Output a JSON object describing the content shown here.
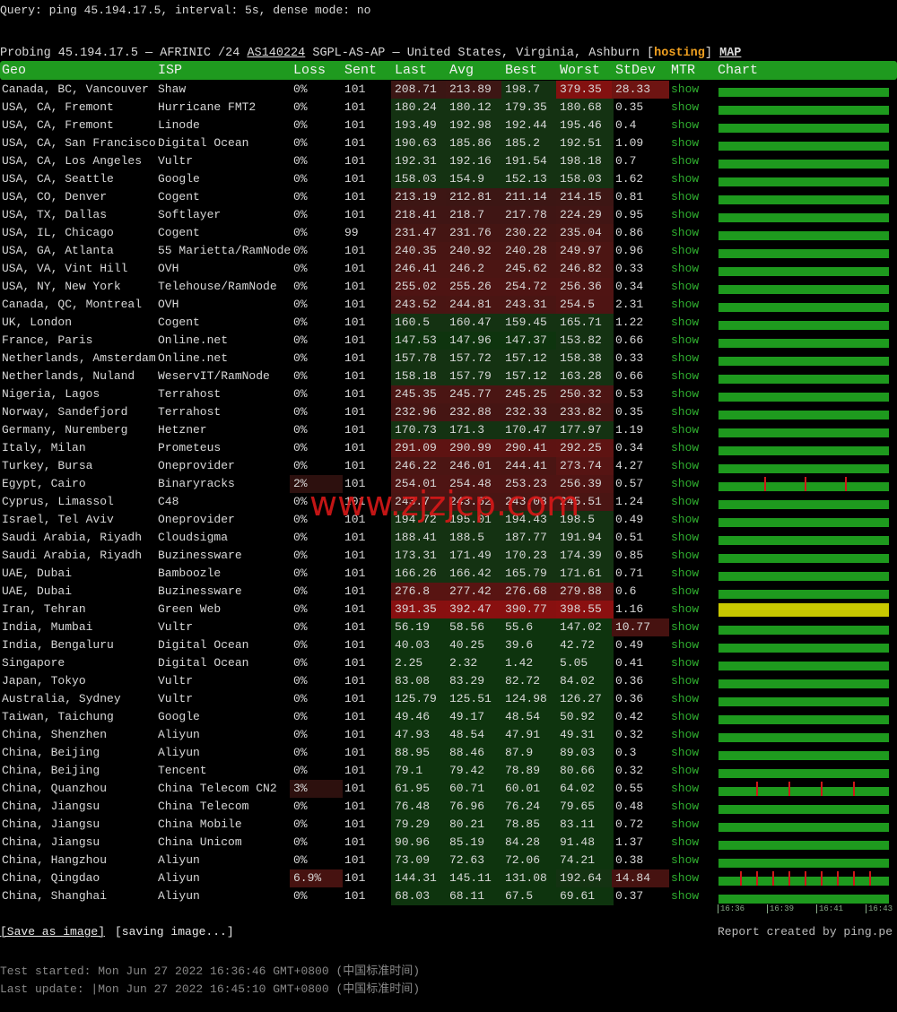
{
  "query": "Query: ping 45.194.17.5, interval: 5s, dense mode: no",
  "probing": {
    "prefix": "Probing 45.194.17.5 — AFRINIC /24",
    "asn": "AS140224",
    "location": "SGPL-AS-AP — United States, Virginia, Ashburn",
    "open": "[",
    "tag": "hosting",
    "close": "]",
    "map": "MAP"
  },
  "table": {
    "headers": [
      "Geo",
      "ISP",
      "Loss",
      "Sent",
      "Last",
      "Avg",
      "Best",
      "Worst",
      "StDev",
      "MTR",
      "Chart"
    ],
    "rows": [
      [
        "Canada, BC, Vancouver",
        "Shaw",
        "0%",
        101,
        208.71,
        213.89,
        198.7,
        379.35,
        28.33,
        "show"
      ],
      [
        "USA, CA, Fremont",
        "Hurricane FMT2",
        "0%",
        101,
        180.24,
        180.12,
        179.35,
        180.68,
        0.35,
        "show"
      ],
      [
        "USA, CA, Fremont",
        "Linode",
        "0%",
        101,
        193.49,
        192.98,
        192.44,
        195.46,
        0.4,
        "show"
      ],
      [
        "USA, CA, San Francisco",
        "Digital Ocean",
        "0%",
        101,
        190.63,
        185.86,
        185.2,
        192.51,
        1.09,
        "show"
      ],
      [
        "USA, CA, Los Angeles",
        "Vultr",
        "0%",
        101,
        192.31,
        192.16,
        191.54,
        198.18,
        0.7,
        "show"
      ],
      [
        "USA, CA, Seattle",
        "Google",
        "0%",
        101,
        158.03,
        154.9,
        152.13,
        158.03,
        1.62,
        "show"
      ],
      [
        "USA, CO, Denver",
        "Cogent",
        "0%",
        101,
        213.19,
        212.81,
        211.14,
        214.15,
        0.81,
        "show"
      ],
      [
        "USA, TX, Dallas",
        "Softlayer",
        "0%",
        101,
        218.41,
        218.7,
        217.78,
        224.29,
        0.95,
        "show"
      ],
      [
        "USA, IL, Chicago",
        "Cogent",
        "0%",
        99,
        231.47,
        231.76,
        230.22,
        235.04,
        0.86,
        "show"
      ],
      [
        "USA, GA, Atlanta",
        "55 Marietta/RamNode",
        "0%",
        101,
        240.35,
        240.92,
        240.28,
        249.97,
        0.96,
        "show"
      ],
      [
        "USA, VA, Vint Hill",
        "OVH",
        "0%",
        101,
        246.41,
        246.2,
        245.62,
        246.82,
        0.33,
        "show"
      ],
      [
        "USA, NY, New York",
        "Telehouse/RamNode",
        "0%",
        101,
        255.02,
        255.26,
        254.72,
        256.36,
        0.34,
        "show"
      ],
      [
        "Canada, QC, Montreal",
        "OVH",
        "0%",
        101,
        243.52,
        244.81,
        243.31,
        254.5,
        2.31,
        "show"
      ],
      [
        "UK, London",
        "Cogent",
        "0%",
        101,
        160.5,
        160.47,
        159.45,
        165.71,
        1.22,
        "show"
      ],
      [
        "France, Paris",
        "Online.net",
        "0%",
        101,
        147.53,
        147.96,
        147.37,
        153.82,
        0.66,
        "show"
      ],
      [
        "Netherlands, Amsterdam",
        "Online.net",
        "0%",
        101,
        157.78,
        157.72,
        157.12,
        158.38,
        0.33,
        "show"
      ],
      [
        "Netherlands, Nuland",
        "WeservIT/RamNode",
        "0%",
        101,
        158.18,
        157.79,
        157.12,
        163.28,
        0.66,
        "show"
      ],
      [
        "Nigeria, Lagos",
        "Terrahost",
        "0%",
        101,
        245.35,
        245.77,
        245.25,
        250.32,
        0.53,
        "show"
      ],
      [
        "Norway, Sandefjord",
        "Terrahost",
        "0%",
        101,
        232.96,
        232.88,
        232.33,
        233.82,
        0.35,
        "show"
      ],
      [
        "Germany, Nuremberg",
        "Hetzner",
        "0%",
        101,
        170.73,
        171.3,
        170.47,
        177.97,
        1.19,
        "show"
      ],
      [
        "Italy, Milan",
        "Prometeus",
        "0%",
        101,
        291.09,
        290.99,
        290.41,
        292.25,
        0.34,
        "show"
      ],
      [
        "Turkey, Bursa",
        "Oneprovider",
        "0%",
        101,
        246.22,
        246.01,
        244.41,
        273.74,
        4.27,
        "show"
      ],
      [
        "Egypt, Cairo",
        "Binaryracks",
        "2%",
        101,
        254.01,
        254.48,
        253.23,
        256.39,
        0.57,
        "show"
      ],
      [
        "Cyprus, Limassol",
        "C48",
        "0%",
        101,
        243.7,
        243.62,
        243.08,
        245.51,
        1.24,
        "show"
      ],
      [
        "Israel, Tel Aviv",
        "Oneprovider",
        "0%",
        101,
        194.72,
        195.01,
        194.43,
        198.5,
        0.49,
        "show"
      ],
      [
        "Saudi Arabia, Riyadh",
        "Cloudsigma",
        "0%",
        101,
        188.41,
        188.5,
        187.77,
        191.94,
        0.51,
        "show"
      ],
      [
        "Saudi Arabia, Riyadh",
        "Buzinessware",
        "0%",
        101,
        173.31,
        171.49,
        170.23,
        174.39,
        0.85,
        "show"
      ],
      [
        "UAE, Dubai",
        "Bamboozle",
        "0%",
        101,
        166.26,
        166.42,
        165.79,
        171.61,
        0.71,
        "show"
      ],
      [
        "UAE, Dubai",
        "Buzinessware",
        "0%",
        101,
        276.8,
        277.42,
        276.68,
        279.88,
        0.6,
        "show"
      ],
      [
        "Iran, Tehran",
        "Green Web",
        "0%",
        101,
        391.35,
        392.47,
        390.77,
        398.55,
        1.16,
        "show"
      ],
      [
        "India, Mumbai",
        "Vultr",
        "0%",
        101,
        56.19,
        58.56,
        55.6,
        147.02,
        10.77,
        "show"
      ],
      [
        "India, Bengaluru",
        "Digital Ocean",
        "0%",
        101,
        40.03,
        40.25,
        39.6,
        42.72,
        0.49,
        "show"
      ],
      [
        "Singapore",
        "Digital Ocean",
        "0%",
        101,
        2.25,
        2.32,
        1.42,
        5.05,
        0.41,
        "show"
      ],
      [
        "Japan, Tokyo",
        "Vultr",
        "0%",
        101,
        83.08,
        83.29,
        82.72,
        84.02,
        0.36,
        "show"
      ],
      [
        "Australia, Sydney",
        "Vultr",
        "0%",
        101,
        125.79,
        125.51,
        124.98,
        126.27,
        0.36,
        "show"
      ],
      [
        "Taiwan, Taichung",
        "Google",
        "0%",
        101,
        49.46,
        49.17,
        48.54,
        50.92,
        0.42,
        "show"
      ],
      [
        "China, Shenzhen",
        "Aliyun",
        "0%",
        101,
        47.93,
        48.54,
        47.91,
        49.31,
        0.32,
        "show"
      ],
      [
        "China, Beijing",
        "Aliyun",
        "0%",
        101,
        88.95,
        88.46,
        87.9,
        89.03,
        0.3,
        "show"
      ],
      [
        "China, Beijing",
        "Tencent",
        "0%",
        101,
        79.1,
        79.42,
        78.89,
        80.66,
        0.32,
        "show"
      ],
      [
        "China, Quanzhou",
        "China Telecom CN2",
        "3%",
        101,
        61.95,
        60.71,
        60.01,
        64.02,
        0.55,
        "show"
      ],
      [
        "China, Jiangsu",
        "China Telecom",
        "0%",
        101,
        76.48,
        76.96,
        76.24,
        79.65,
        0.48,
        "show"
      ],
      [
        "China, Jiangsu",
        "China Mobile",
        "0%",
        101,
        79.29,
        80.21,
        78.85,
        83.11,
        0.72,
        "show"
      ],
      [
        "China, Jiangsu",
        "China Unicom",
        "0%",
        101,
        90.96,
        85.19,
        84.28,
        91.48,
        1.37,
        "show"
      ],
      [
        "China, Hangzhou",
        "Aliyun",
        "0%",
        101,
        73.09,
        72.63,
        72.06,
        74.21,
        0.38,
        "show"
      ],
      [
        "China, Qingdao",
        "Aliyun",
        "6.9%",
        101,
        144.31,
        145.11,
        131.08,
        192.64,
        14.84,
        "show"
      ],
      [
        "China, Shanghai",
        "Aliyun",
        "0%",
        101,
        68.03,
        68.11,
        67.5,
        69.61,
        0.37,
        "show"
      ]
    ]
  },
  "chart_times": [
    "16:36",
    "16:39",
    "16:41",
    "16:43"
  ],
  "footer": {
    "save": "[Save as image]",
    "saving": "[saving image...]",
    "report": "Report created by ping.pe",
    "test_started": "Test started: Mon Jun 27 2022 16:36:46 GMT+0800 (中国标准时间)",
    "last_update": "Last update: |Mon Jun 27 2022 16:45:10 GMT+0800 (中国标准时间)"
  },
  "watermark": "www.zjzjcp.com"
}
